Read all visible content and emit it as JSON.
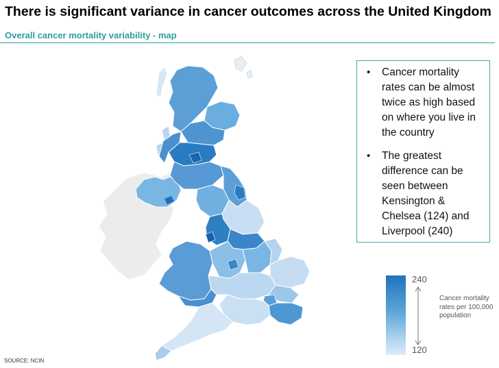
{
  "header": {
    "title": "There is significant variance in cancer outcomes across the United Kingdom",
    "subtitle": "Overall cancer mortality variability - map"
  },
  "callout": {
    "bullets": [
      "Cancer mortality rates can be almost twice as high based on where you live in the country",
      "The greatest difference can be seen between Kensington & Chelsea (124) and Liverpool (240)"
    ]
  },
  "legend": {
    "max": "240",
    "min": "120",
    "label": "Cancer mortality rates per 100,000 population",
    "colors": {
      "high": "#1f73bd",
      "mid": "#5ca5d9",
      "low": "#dcebf7"
    }
  },
  "source": "SOURCE: NCIN",
  "colors": {
    "accent": "#2f9ba1",
    "ireland": "#ececec",
    "map_dark": "#2a7cc2",
    "map_mid": "#6aaee0",
    "map_light": "#c9e0f3"
  }
}
